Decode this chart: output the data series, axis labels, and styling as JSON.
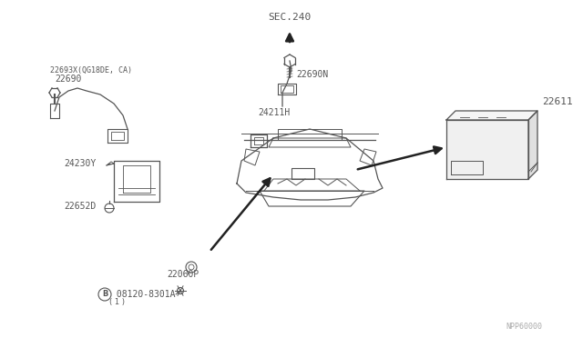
{
  "bg_color": "#ffffff",
  "line_color": "#555555",
  "text_color": "#555555",
  "fig_width": 6.4,
  "fig_height": 3.72,
  "dpi": 100,
  "labels": {
    "B_label": "Ⓑ 08120-8301A",
    "B_sub": "( 1 )",
    "part_22060P": "22060P",
    "part_22652D": "22652D",
    "part_24230Y": "24230Y",
    "part_22690": "22690",
    "part_22693X": "22693X(QG18DE, CA)",
    "part_24211H": "24211H",
    "part_22690N": "22690N",
    "part_sec240": "SEC.240",
    "part_22611": "22611",
    "watermark": "NPP60000"
  }
}
